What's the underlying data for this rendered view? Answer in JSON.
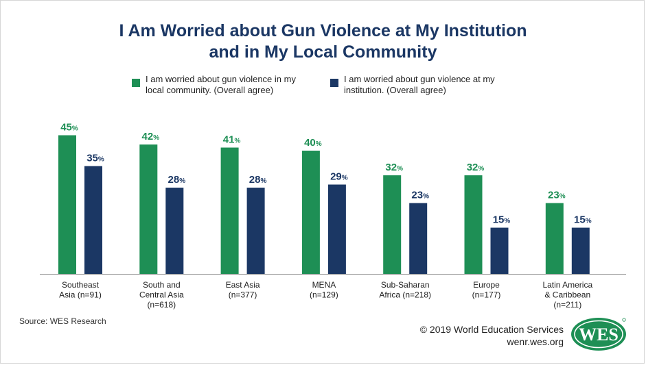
{
  "header": {
    "title_line1": "I Am Worried about Gun Violence at My Institution",
    "title_line2": "and in My Local Community"
  },
  "colors": {
    "green": "#1e8f55",
    "navy": "#1b3764",
    "title": "#1b3764"
  },
  "chart_data": {
    "type": "bar",
    "categories": [
      [
        "Southeast",
        "Asia (n=91)"
      ],
      [
        "South and",
        "Central Asia",
        "(n=618)"
      ],
      [
        "East Asia",
        "(n=377)"
      ],
      [
        "MENA",
        "(n=129)"
      ],
      [
        "Sub-Saharan",
        "Africa (n=218)"
      ],
      [
        "Europe",
        "(n=177)"
      ],
      [
        "Latin America",
        "& Caribbean",
        "(n=211)"
      ]
    ],
    "series": [
      {
        "name": "I am worried about gun violence in my local community. (Overall agree)",
        "name_lines": [
          "I am worried about gun violence in my",
          "local community. (Overall agree)"
        ],
        "color": "#1e8f55",
        "values": [
          45,
          42,
          41,
          40,
          32,
          32,
          23
        ]
      },
      {
        "name": "I am worried about gun violence at my institution. (Overall agree)",
        "name_lines": [
          "I am worried about gun violence at my",
          "institution. (Overall agree)"
        ],
        "color": "#1b3764",
        "values": [
          35,
          28,
          28,
          29,
          23,
          15,
          15
        ]
      }
    ],
    "unit_suffix": "%",
    "ylim": [
      0,
      50
    ],
    "grid": false,
    "legend_position": "top"
  },
  "footer": {
    "source": "Source: WES Research",
    "copyright": "© 2019 World Education Services",
    "website": "wenr.wes.org",
    "logo_text": "WES"
  }
}
